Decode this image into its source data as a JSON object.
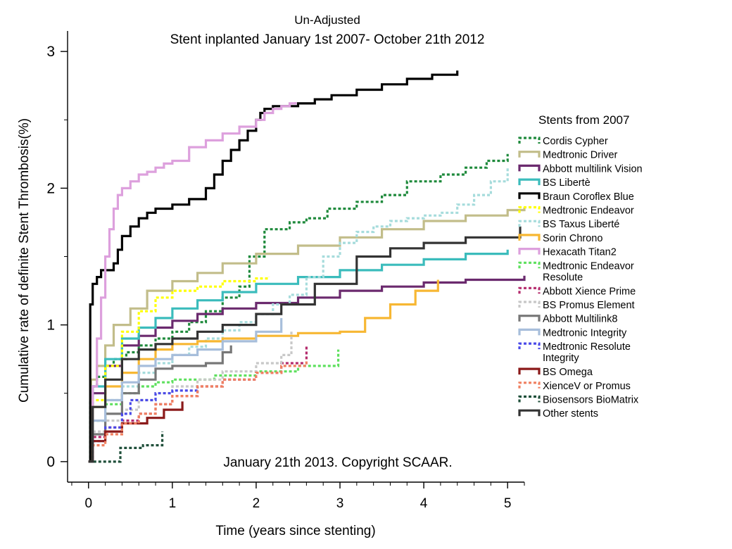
{
  "chart_data": {
    "type": "line",
    "subtitle": "Un-Adjusted",
    "title": "Stent inplanted January 1st 2007- October 21th 2012",
    "xlabel": "Time (years since stenting)",
    "ylabel": "Cumulative rate of definite Stent Thrombosis(%)",
    "annotation": "January 21th 2013. Copyright SCAAR.",
    "legend_title": "Stents from 2007",
    "legend_position": "right",
    "xlim": [
      -0.25,
      5.2
    ],
    "ylim": [
      -0.15,
      3.15
    ],
    "x_ticks": [
      "0",
      "1",
      "2",
      "3",
      "4",
      "5"
    ],
    "y_ticks": [
      "0",
      "1",
      "2",
      "3"
    ],
    "series": [
      {
        "name": "Cordis Cypher",
        "color": "#1f8a3c",
        "dash": "dot",
        "x": [
          0,
          0.02,
          0.05,
          0.1,
          0.2,
          0.3,
          0.45,
          0.6,
          0.8,
          1.0,
          1.2,
          1.4,
          1.6,
          1.8,
          1.92,
          2.1,
          2.4,
          2.6,
          2.85,
          3.2,
          3.5,
          3.8,
          4.2,
          4.5,
          4.75,
          5.0
        ],
        "y": [
          0,
          0.45,
          0.55,
          0.62,
          0.7,
          0.75,
          0.8,
          0.85,
          0.9,
          0.95,
          1.02,
          1.1,
          1.2,
          1.28,
          1.5,
          1.7,
          1.75,
          1.78,
          1.85,
          1.9,
          1.95,
          2.05,
          2.1,
          2.15,
          2.2,
          2.25
        ]
      },
      {
        "name": "Medtronic Driver",
        "color": "#c2bd8a",
        "dash": "solid",
        "x": [
          0,
          0.03,
          0.1,
          0.2,
          0.3,
          0.5,
          0.7,
          1.0,
          1.3,
          1.6,
          2.0,
          2.5,
          3.0,
          3.5,
          4.0,
          4.5,
          5.0,
          5.2
        ],
        "y": [
          0,
          0.6,
          0.7,
          0.85,
          1.0,
          1.12,
          1.25,
          1.32,
          1.38,
          1.45,
          1.52,
          1.58,
          1.64,
          1.7,
          1.76,
          1.8,
          1.84,
          1.86
        ]
      },
      {
        "name": "Abbott multilink Vision",
        "color": "#6b2a6e",
        "dash": "solid",
        "x": [
          0,
          0.05,
          0.2,
          0.4,
          0.6,
          0.8,
          1.0,
          1.3,
          1.6,
          2.0,
          2.5,
          3.0,
          3.5,
          4.0,
          4.5,
          5.2
        ],
        "y": [
          0,
          0.5,
          0.7,
          0.85,
          0.92,
          0.98,
          1.03,
          1.08,
          1.12,
          1.16,
          1.2,
          1.25,
          1.28,
          1.31,
          1.33,
          1.36
        ]
      },
      {
        "name": "BS Libertè",
        "color": "#3bbcbc",
        "dash": "solid",
        "x": [
          0,
          0.05,
          0.2,
          0.4,
          0.6,
          0.8,
          1.0,
          1.3,
          1.6,
          2.0,
          2.5,
          3.0,
          3.5,
          4.0,
          4.5,
          5.0
        ],
        "y": [
          0,
          0.55,
          0.75,
          0.9,
          0.98,
          1.05,
          1.12,
          1.18,
          1.24,
          1.3,
          1.35,
          1.4,
          1.44,
          1.48,
          1.52,
          1.55
        ]
      },
      {
        "name": "Braun Coroflex Blue",
        "color": "#000000",
        "dash": "solid",
        "x": [
          0,
          0.02,
          0.05,
          0.1,
          0.15,
          0.3,
          0.35,
          0.4,
          0.5,
          0.6,
          0.7,
          0.8,
          1.0,
          1.2,
          1.4,
          1.5,
          1.6,
          1.7,
          1.8,
          1.9,
          2.0,
          2.05,
          2.1,
          2.2,
          2.5,
          2.7,
          2.9,
          3.2,
          3.5,
          3.8,
          4.1,
          4.4
        ],
        "y": [
          0,
          1.15,
          1.3,
          1.35,
          1.4,
          1.45,
          1.55,
          1.65,
          1.72,
          1.78,
          1.82,
          1.85,
          1.88,
          1.92,
          2.0,
          2.1,
          2.2,
          2.28,
          2.35,
          2.42,
          2.5,
          2.55,
          2.58,
          2.6,
          2.62,
          2.65,
          2.68,
          2.72,
          2.76,
          2.8,
          2.83,
          2.86
        ]
      },
      {
        "name": "Medtronic Endeavor",
        "color": "#ffff00",
        "dash": "dot",
        "x": [
          0,
          0.05,
          0.2,
          0.4,
          0.6,
          0.8,
          1.0,
          1.3,
          1.6,
          2.0,
          2.15
        ],
        "y": [
          0,
          0.45,
          0.7,
          0.95,
          1.1,
          1.2,
          1.25,
          1.28,
          1.32,
          1.34,
          1.35
        ]
      },
      {
        "name": "BS Taxus Liberté",
        "color": "#a6dcdc",
        "dash": "dot",
        "x": [
          0,
          0.05,
          0.2,
          0.4,
          0.6,
          0.8,
          1.0,
          1.2,
          1.4,
          1.6,
          1.8,
          2.0,
          2.2,
          2.4,
          2.6,
          2.8,
          3.0,
          3.2,
          3.4,
          3.6,
          3.8,
          4.0,
          4.2,
          4.4,
          4.6,
          4.8,
          5.0
        ],
        "y": [
          0,
          0.3,
          0.45,
          0.55,
          0.65,
          0.72,
          0.78,
          0.84,
          0.9,
          0.96,
          1.02,
          1.08,
          1.15,
          1.22,
          1.35,
          1.5,
          1.6,
          1.68,
          1.72,
          1.76,
          1.78,
          1.8,
          1.82,
          1.88,
          1.95,
          2.05,
          2.15
        ]
      },
      {
        "name": "Sorin Chrono",
        "color": "#f7b733",
        "dash": "solid",
        "x": [
          0,
          0.05,
          0.2,
          0.4,
          0.6,
          0.8,
          1.0,
          1.3,
          1.6,
          2.0,
          2.5,
          3.0,
          3.3,
          3.6,
          3.9,
          4.17
        ],
        "y": [
          0,
          0.4,
          0.55,
          0.65,
          0.75,
          0.82,
          0.86,
          0.88,
          0.9,
          0.92,
          0.94,
          0.95,
          1.05,
          1.15,
          1.25,
          1.33
        ]
      },
      {
        "name": "Hexacath Titan2",
        "color": "#dda0dd",
        "dash": "solid",
        "x": [
          0,
          0.05,
          0.1,
          0.15,
          0.2,
          0.25,
          0.3,
          0.35,
          0.4,
          0.5,
          0.6,
          0.7,
          0.8,
          0.9,
          1.0,
          1.2,
          1.4,
          1.6,
          1.8,
          2.0,
          2.1,
          2.2,
          2.3,
          2.4,
          2.47
        ],
        "y": [
          0,
          0.55,
          0.9,
          1.2,
          1.5,
          1.7,
          1.85,
          1.95,
          2.0,
          2.05,
          2.1,
          2.12,
          2.15,
          2.18,
          2.2,
          2.3,
          2.35,
          2.4,
          2.45,
          2.5,
          2.55,
          2.58,
          2.6,
          2.62,
          2.63
        ]
      },
      {
        "name": "Medtronic Endeavor Resolute",
        "color": "#5ee05e",
        "dash": "dot",
        "x": [
          0,
          0.05,
          0.2,
          0.4,
          0.6,
          0.8,
          1.0,
          1.5,
          2.0,
          2.5,
          2.98
        ],
        "y": [
          0,
          0.3,
          0.42,
          0.5,
          0.55,
          0.58,
          0.6,
          0.63,
          0.66,
          0.7,
          0.82
        ]
      },
      {
        "name": "Abbott Xience Prime",
        "color": "#b52d6e",
        "dash": "dot",
        "x": [
          0,
          0.05,
          0.2,
          0.4,
          0.6,
          0.8,
          1.0,
          1.3,
          1.6,
          2.0,
          2.3,
          2.6
        ],
        "y": [
          0,
          0.18,
          0.25,
          0.3,
          0.35,
          0.42,
          0.48,
          0.55,
          0.6,
          0.65,
          0.72,
          0.85
        ]
      },
      {
        "name": "BS Promus Element",
        "color": "#c8c8c8",
        "dash": "dot",
        "x": [
          0,
          0.05,
          0.2,
          0.4,
          0.6,
          0.8,
          1.0,
          1.3,
          1.6,
          2.0,
          2.3,
          2.42
        ],
        "y": [
          0,
          0.22,
          0.3,
          0.38,
          0.45,
          0.5,
          0.55,
          0.6,
          0.66,
          0.72,
          0.78,
          0.95
        ]
      },
      {
        "name": "Abbott Multilink8",
        "color": "#777777",
        "dash": "solid",
        "x": [
          0,
          0.05,
          0.2,
          0.4,
          0.6,
          0.8,
          1.0,
          1.2,
          1.4,
          1.6,
          1.7
        ],
        "y": [
          0,
          0.2,
          0.35,
          0.5,
          0.6,
          0.68,
          0.7,
          0.7,
          0.72,
          0.8,
          0.85
        ]
      },
      {
        "name": "Medtronic Integrity",
        "color": "#a7bedb",
        "dash": "solid",
        "x": [
          0,
          0.05,
          0.2,
          0.4,
          0.6,
          0.8,
          1.0,
          1.3,
          1.6,
          2.0,
          2.3
        ],
        "y": [
          0,
          0.3,
          0.45,
          0.58,
          0.7,
          0.75,
          0.78,
          0.82,
          0.88,
          0.95,
          1.05
        ]
      },
      {
        "name": "Medtronic Resolute Integrity",
        "color": "#4a4ae8",
        "dash": "dot",
        "x": [
          0,
          0.05,
          0.2,
          0.4,
          0.5,
          0.8,
          1.0,
          1.3
        ],
        "y": [
          0,
          0.15,
          0.25,
          0.35,
          0.45,
          0.5,
          0.52,
          0.55
        ]
      },
      {
        "name": "BS Omega",
        "color": "#8b1a1a",
        "dash": "solid",
        "x": [
          0,
          0.05,
          0.2,
          0.4,
          0.7,
          0.9,
          1.12
        ],
        "y": [
          0,
          0.15,
          0.22,
          0.28,
          0.32,
          0.38,
          0.44
        ]
      },
      {
        "name": "XienceV or Promus",
        "color": "#f08060",
        "dash": "dot",
        "x": [
          0,
          0.05,
          0.2,
          0.4,
          0.6,
          0.8,
          1.0,
          1.3,
          1.6,
          2.0,
          2.3,
          2.6
        ],
        "y": [
          0,
          0.12,
          0.2,
          0.28,
          0.35,
          0.42,
          0.48,
          0.55,
          0.6,
          0.65,
          0.7,
          0.75
        ]
      },
      {
        "name": "Biosensors BioMatrix",
        "color": "#1f4f3a",
        "dash": "dot",
        "x": [
          0,
          0.13,
          0.38,
          0.65,
          0.88
        ],
        "y": [
          0,
          0.0,
          0.1,
          0.12,
          0.22
        ]
      },
      {
        "name": "Other stents",
        "color": "#333333",
        "dash": "solid",
        "x": [
          0,
          0.05,
          0.2,
          0.4,
          0.6,
          0.8,
          1.0,
          1.3,
          1.6,
          2.0,
          2.3,
          2.7,
          3.2,
          3.6,
          4.0,
          4.5,
          5.15
        ],
        "y": [
          0,
          0.4,
          0.6,
          0.75,
          0.82,
          0.86,
          0.9,
          0.95,
          1.0,
          1.08,
          1.15,
          1.3,
          1.5,
          1.56,
          1.6,
          1.64,
          1.72
        ]
      }
    ]
  }
}
